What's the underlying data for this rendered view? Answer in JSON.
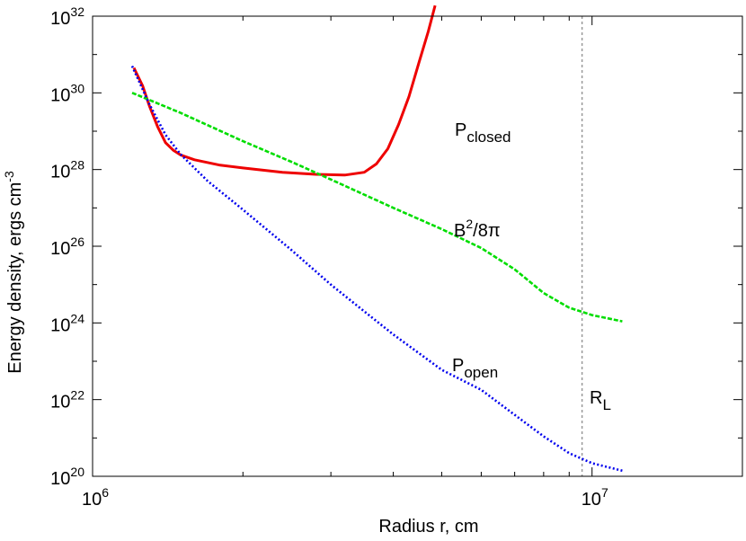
{
  "chart_data": {
    "type": "line",
    "xlabel": "Radius r, cm",
    "ylabel": "Energy density, ergs cm",
    "ylabel_sup": "-3",
    "x_scale": "log",
    "y_scale": "log",
    "xlim": [
      1000000,
      20000000
    ],
    "ylim": [
      1e+20,
      1e+32
    ],
    "grid": false,
    "x_ticks": [
      {
        "value": 1000000,
        "base": "10",
        "exp": "6"
      },
      {
        "value": 10000000,
        "base": "10",
        "exp": "7"
      }
    ],
    "y_ticks": [
      {
        "value": 1e+20,
        "base": "10",
        "exp": "20"
      },
      {
        "value": 1e+22,
        "base": "10",
        "exp": "22"
      },
      {
        "value": 1e+24,
        "base": "10",
        "exp": "24"
      },
      {
        "value": 1e+26,
        "base": "10",
        "exp": "26"
      },
      {
        "value": 1e+28,
        "base": "10",
        "exp": "28"
      },
      {
        "value": 1e+30,
        "base": "10",
        "exp": "30"
      },
      {
        "value": 1e+32,
        "base": "10",
        "exp": "32"
      }
    ],
    "series": [
      {
        "key": "p_closed",
        "color": "#ee0000",
        "style": "solid",
        "label": {
          "main": "P",
          "sub": "closed"
        },
        "points": [
          [
            1210000,
            4.5e+30
          ],
          [
            1260000,
            1.5e+30
          ],
          [
            1300000,
            4.5e+29
          ],
          [
            1350000,
            1.3e+29
          ],
          [
            1400000,
            5e+28
          ],
          [
            1450000,
            3.2e+28
          ],
          [
            1500000,
            2.4e+28
          ],
          [
            1600000,
            1.8e+28
          ],
          [
            1800000,
            1.3e+28
          ],
          [
            2000000,
            1.1e+28
          ],
          [
            2400000,
            8.5e+27
          ],
          [
            2800000,
            7.5e+27
          ],
          [
            3200000,
            7.2e+27
          ],
          [
            3500000,
            8.5e+27
          ],
          [
            3700000,
            1.4e+28
          ],
          [
            3900000,
            3.5e+28
          ],
          [
            4100000,
            1.5e+29
          ],
          [
            4300000,
            8e+29
          ],
          [
            4500000,
            6e+30
          ],
          [
            4700000,
            4e+31
          ],
          [
            4850000,
            1.9e+32
          ]
        ]
      },
      {
        "key": "magnetic",
        "color": "#00dd00",
        "style": "dashed",
        "label": {
          "main": "B",
          "sup": "2",
          "tail": "/8π"
        },
        "points": [
          [
            1200000,
            1e+30
          ],
          [
            1500000,
            3e+29
          ],
          [
            2000000,
            5.5e+28
          ],
          [
            2500000,
            1.6e+28
          ],
          [
            3000000,
            5.5e+27
          ],
          [
            4000000,
            1e+27
          ],
          [
            5000000,
            2.8e+26
          ],
          [
            6000000,
            9e+25
          ],
          [
            7000000,
            2.5e+25
          ],
          [
            8000000,
            6e+24
          ],
          [
            9000000,
            2.5e+24
          ],
          [
            10000000,
            1.6e+24
          ],
          [
            11500000,
            1.1e+24
          ]
        ]
      },
      {
        "key": "p_open",
        "color": "#0000ee",
        "style": "dotted",
        "label": {
          "main": "P",
          "sub": "open"
        },
        "points": [
          [
            1200000,
            5e+30
          ],
          [
            1300000,
            5e+29
          ],
          [
            1400000,
            8e+28
          ],
          [
            1500000,
            2.5e+28
          ],
          [
            1700000,
            5e+27
          ],
          [
            2000000,
            9e+26
          ],
          [
            2500000,
            8e+25
          ],
          [
            3000000,
            1e+25
          ],
          [
            3500000,
            2e+24
          ],
          [
            4000000,
            5e+23
          ],
          [
            5000000,
            6e+22
          ],
          [
            6000000,
            1.8e+22
          ],
          [
            7000000,
            4e+21
          ],
          [
            8000000,
            1.1e+21
          ],
          [
            9000000,
            4e+20
          ],
          [
            10000000,
            2.2e+20
          ],
          [
            11500000,
            1.4e+20
          ]
        ]
      }
    ],
    "rl_line": {
      "x": 9550000,
      "color": "#999999",
      "label": {
        "main": "R",
        "sub": "L"
      }
    }
  }
}
